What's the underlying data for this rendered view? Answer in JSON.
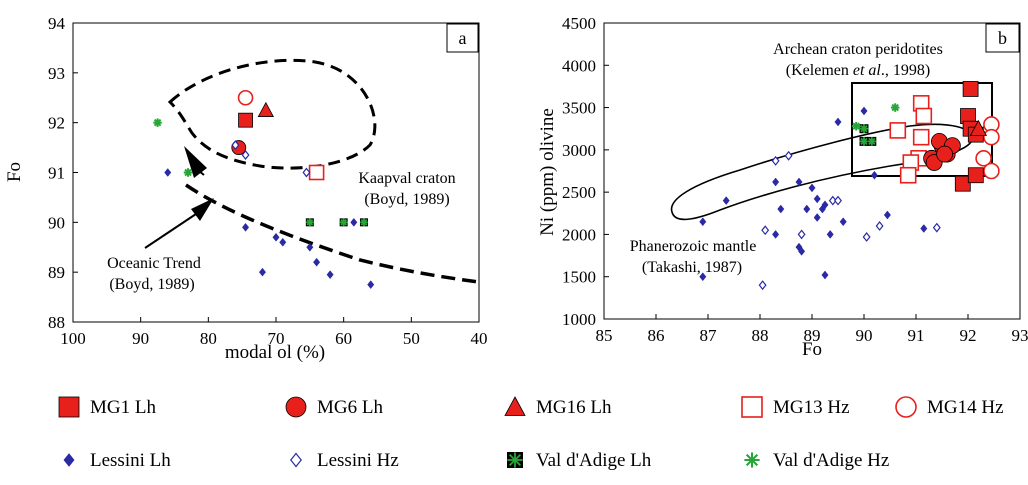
{
  "colors": {
    "red": "#e8201c",
    "blue": "#2a2aa6",
    "green": "#26a637",
    "black": "#000000"
  },
  "legend": {
    "items": [
      {
        "key": "MG1 Lh",
        "label": "MG1 Lh",
        "marker": "square-filled",
        "color": "#e8201c"
      },
      {
        "key": "MG6 Lh",
        "label": "MG6 Lh",
        "marker": "circle-filled",
        "color": "#e8201c"
      },
      {
        "key": "MG16 Lh",
        "label": "MG16 Lh",
        "marker": "triangle-filled",
        "color": "#e8201c"
      },
      {
        "key": "MG13 Hz",
        "label": "MG13 Hz",
        "marker": "square-open",
        "color": "#e8201c"
      },
      {
        "key": "MG14 Hz",
        "label": "MG14 Hz",
        "marker": "circle-open",
        "color": "#e8201c"
      },
      {
        "key": "Lessini Lh",
        "label": "Lessini Lh",
        "marker": "diamond-filled",
        "color": "#2a2aa6"
      },
      {
        "key": "Lessini Hz",
        "label": "Lessini Hz",
        "marker": "diamond-open",
        "color": "#2a2aa6"
      },
      {
        "key": "Val d'Adige Lh",
        "label": "Val d'Adige Lh",
        "marker": "asterisk-boxed",
        "color": "#26a637"
      },
      {
        "key": "Val d'Adige Hz",
        "label": "Val d'Adige Hz",
        "marker": "asterisk",
        "color": "#26a637"
      }
    ]
  },
  "chart_data": [
    {
      "panel": "a",
      "type": "scatter",
      "xlabel": "modal ol (%)",
      "ylabel": "Fo",
      "xlim": [
        100,
        40
      ],
      "ylim": [
        88,
        94
      ],
      "x_ticks": [
        "100",
        "90",
        "80",
        "70",
        "60",
        "50",
        "40"
      ],
      "y_ticks": [
        "88",
        "89",
        "90",
        "91",
        "92",
        "93",
        "94"
      ],
      "annotations": {
        "kaapval_1": "Kaapval craton",
        "kaapval_2": "(Boyd, 1989)",
        "oceanic_1": "Oceanic Trend",
        "oceanic_2": "(Boyd, 1989)"
      },
      "series": [
        {
          "name": "MG1 Lh",
          "points": [
            [
              74.5,
              92.05
            ]
          ]
        },
        {
          "name": "MG6 Lh",
          "points": [
            [
              75.5,
              91.5
            ]
          ]
        },
        {
          "name": "MG16 Lh",
          "points": [
            [
              71.5,
              92.25
            ]
          ]
        },
        {
          "name": "MG13 Hz",
          "points": [
            [
              64,
              91.0
            ]
          ]
        },
        {
          "name": "MG14 Hz",
          "points": [
            [
              74.5,
              92.5
            ]
          ]
        },
        {
          "name": "Lessini Lh",
          "points": [
            [
              86,
              91.0
            ],
            [
              74.5,
              89.9
            ],
            [
              70,
              89.7
            ],
            [
              69,
              89.6
            ],
            [
              72,
              89.0
            ],
            [
              65,
              89.5
            ],
            [
              64,
              89.2
            ],
            [
              62,
              88.95
            ],
            [
              56,
              88.75
            ],
            [
              58.5,
              90.0
            ]
          ]
        },
        {
          "name": "Lessini Hz",
          "points": [
            [
              76,
              91.55
            ],
            [
              74.5,
              91.35
            ],
            [
              65.5,
              91.0
            ]
          ]
        },
        {
          "name": "Val d'Adige Lh",
          "points": [
            [
              65,
              90.0
            ],
            [
              60,
              90.0
            ],
            [
              57,
              90.0
            ]
          ]
        },
        {
          "name": "Val d'Adige Hz",
          "points": [
            [
              87.5,
              92.0
            ],
            [
              83,
              91.0
            ]
          ]
        }
      ]
    },
    {
      "panel": "b",
      "type": "scatter",
      "xlabel": "Fo",
      "ylabel": "Ni (ppm) olivine",
      "xlim": [
        85,
        93
      ],
      "ylim": [
        1000,
        4500
      ],
      "x_ticks": [
        "85",
        "86",
        "87",
        "88",
        "89",
        "90",
        "91",
        "92",
        "93"
      ],
      "y_ticks": [
        "1000",
        "1500",
        "2000",
        "2500",
        "3000",
        "3500",
        "4000",
        "4500"
      ],
      "annotations": {
        "archean_1": "Archean craton peridotites",
        "archean_2a": "(Kelemen ",
        "archean_2b": "et al",
        "archean_2c": "., 1998)",
        "phan_1": "Phanerozoic mantle",
        "phan_2": "(Takashi, 1987)"
      },
      "series": [
        {
          "name": "MG1 Lh",
          "points": [
            [
              92.05,
              3720
            ],
            [
              92.0,
              3400
            ],
            [
              92.05,
              3250
            ],
            [
              92.15,
              3180
            ],
            [
              91.9,
              2600
            ],
            [
              92.15,
              2700
            ]
          ]
        },
        {
          "name": "MG6 Lh",
          "points": [
            [
              91.5,
              3050
            ],
            [
              91.6,
              2950
            ],
            [
              91.45,
              3100
            ],
            [
              91.7,
              3050
            ],
            [
              91.3,
              2900
            ],
            [
              91.35,
              2850
            ],
            [
              91.55,
              2950
            ]
          ]
        },
        {
          "name": "MG16 Lh",
          "points": [
            [
              92.2,
              3250
            ]
          ]
        },
        {
          "name": "MG13 Hz",
          "points": [
            [
              91.1,
              3550
            ],
            [
              91.15,
              3400
            ],
            [
              90.65,
              3230
            ],
            [
              91.1,
              3150
            ],
            [
              91.05,
              2900
            ],
            [
              90.9,
              2850
            ],
            [
              90.85,
              2700
            ]
          ]
        },
        {
          "name": "MG14 Hz",
          "points": [
            [
              92.45,
              3300
            ],
            [
              92.45,
              3150
            ],
            [
              92.3,
              2900
            ],
            [
              92.45,
              2750
            ]
          ]
        },
        {
          "name": "Lessini Lh",
          "points": [
            [
              86.9,
              1500
            ],
            [
              86.9,
              2150
            ],
            [
              87.35,
              2400
            ],
            [
              88.3,
              2620
            ],
            [
              88.3,
              2000
            ],
            [
              88.4,
              2300
            ],
            [
              88.75,
              2620
            ],
            [
              88.75,
              1850
            ],
            [
              88.8,
              1800
            ],
            [
              88.9,
              2300
            ],
            [
              89.0,
              2550
            ],
            [
              89.1,
              2420
            ],
            [
              89.1,
              2200
            ],
            [
              89.2,
              2300
            ],
            [
              89.25,
              2350
            ],
            [
              89.25,
              1520
            ],
            [
              89.35,
              2000
            ],
            [
              89.5,
              3330
            ],
            [
              89.6,
              2150
            ],
            [
              90.0,
              3460
            ],
            [
              90.2,
              2700
            ],
            [
              90.45,
              2230
            ],
            [
              91.15,
              2070
            ]
          ]
        },
        {
          "name": "Lessini Hz",
          "points": [
            [
              88.3,
              2870
            ],
            [
              88.55,
              2930
            ],
            [
              88.1,
              2050
            ],
            [
              88.05,
              1400
            ],
            [
              88.8,
              2000
            ],
            [
              89.4,
              2400
            ],
            [
              89.5,
              2400
            ],
            [
              90.05,
              1970
            ],
            [
              91.4,
              2080
            ],
            [
              90.3,
              2100
            ]
          ]
        },
        {
          "name": "Val d'Adige Lh",
          "points": [
            [
              90.0,
              3250
            ],
            [
              90.0,
              3100
            ],
            [
              90.15,
              3100
            ]
          ]
        },
        {
          "name": "Val d'Adige Hz",
          "points": [
            [
              90.6,
              3500
            ],
            [
              89.85,
              3280
            ]
          ]
        }
      ]
    }
  ]
}
